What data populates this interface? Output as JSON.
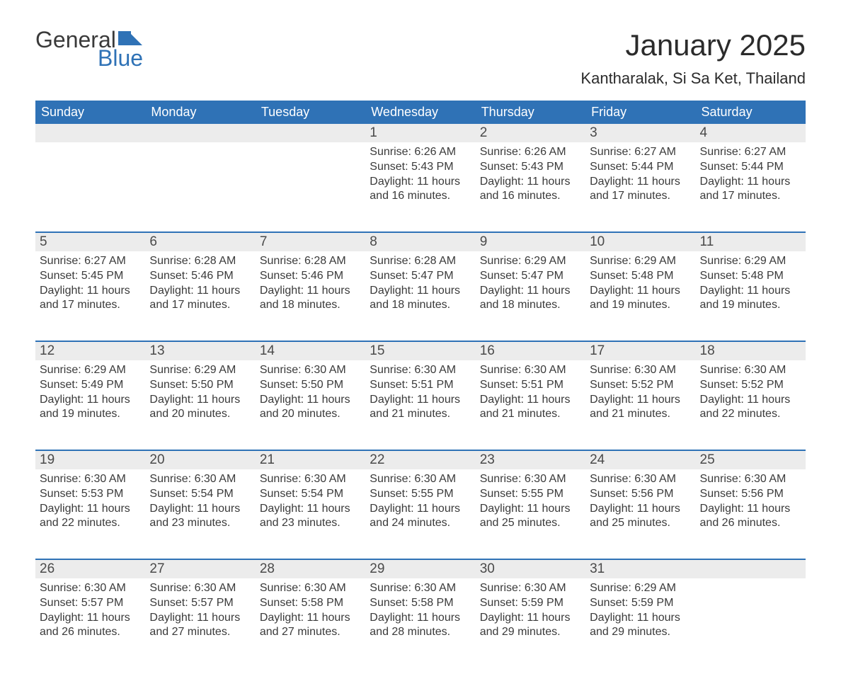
{
  "logo": {
    "text1": "General",
    "text2": "Blue",
    "flag_color": "#2f72b6"
  },
  "header": {
    "month_title": "January 2025",
    "location": "Kantharalak, Si Sa Ket, Thailand",
    "title_fontsize": 42,
    "location_fontsize": 22
  },
  "styling": {
    "header_bg": "#2f72b6",
    "header_fg": "#ffffff",
    "daynum_bg": "#ececec",
    "week_divider": "#2f72b6",
    "body_text": "#3a3a3a",
    "weekday_fontsize": 18,
    "daynum_fontsize": 19,
    "body_fontsize": 16
  },
  "weekdays": [
    "Sunday",
    "Monday",
    "Tuesday",
    "Wednesday",
    "Thursday",
    "Friday",
    "Saturday"
  ],
  "weeks": [
    [
      {
        "day": "",
        "sunrise": "",
        "sunset": "",
        "daylight": ""
      },
      {
        "day": "",
        "sunrise": "",
        "sunset": "",
        "daylight": ""
      },
      {
        "day": "",
        "sunrise": "",
        "sunset": "",
        "daylight": ""
      },
      {
        "day": "1",
        "sunrise": "Sunrise: 6:26 AM",
        "sunset": "Sunset: 5:43 PM",
        "daylight": "Daylight: 11 hours and 16 minutes."
      },
      {
        "day": "2",
        "sunrise": "Sunrise: 6:26 AM",
        "sunset": "Sunset: 5:43 PM",
        "daylight": "Daylight: 11 hours and 16 minutes."
      },
      {
        "day": "3",
        "sunrise": "Sunrise: 6:27 AM",
        "sunset": "Sunset: 5:44 PM",
        "daylight": "Daylight: 11 hours and 17 minutes."
      },
      {
        "day": "4",
        "sunrise": "Sunrise: 6:27 AM",
        "sunset": "Sunset: 5:44 PM",
        "daylight": "Daylight: 11 hours and 17 minutes."
      }
    ],
    [
      {
        "day": "5",
        "sunrise": "Sunrise: 6:27 AM",
        "sunset": "Sunset: 5:45 PM",
        "daylight": "Daylight: 11 hours and 17 minutes."
      },
      {
        "day": "6",
        "sunrise": "Sunrise: 6:28 AM",
        "sunset": "Sunset: 5:46 PM",
        "daylight": "Daylight: 11 hours and 17 minutes."
      },
      {
        "day": "7",
        "sunrise": "Sunrise: 6:28 AM",
        "sunset": "Sunset: 5:46 PM",
        "daylight": "Daylight: 11 hours and 18 minutes."
      },
      {
        "day": "8",
        "sunrise": "Sunrise: 6:28 AM",
        "sunset": "Sunset: 5:47 PM",
        "daylight": "Daylight: 11 hours and 18 minutes."
      },
      {
        "day": "9",
        "sunrise": "Sunrise: 6:29 AM",
        "sunset": "Sunset: 5:47 PM",
        "daylight": "Daylight: 11 hours and 18 minutes."
      },
      {
        "day": "10",
        "sunrise": "Sunrise: 6:29 AM",
        "sunset": "Sunset: 5:48 PM",
        "daylight": "Daylight: 11 hours and 19 minutes."
      },
      {
        "day": "11",
        "sunrise": "Sunrise: 6:29 AM",
        "sunset": "Sunset: 5:48 PM",
        "daylight": "Daylight: 11 hours and 19 minutes."
      }
    ],
    [
      {
        "day": "12",
        "sunrise": "Sunrise: 6:29 AM",
        "sunset": "Sunset: 5:49 PM",
        "daylight": "Daylight: 11 hours and 19 minutes."
      },
      {
        "day": "13",
        "sunrise": "Sunrise: 6:29 AM",
        "sunset": "Sunset: 5:50 PM",
        "daylight": "Daylight: 11 hours and 20 minutes."
      },
      {
        "day": "14",
        "sunrise": "Sunrise: 6:30 AM",
        "sunset": "Sunset: 5:50 PM",
        "daylight": "Daylight: 11 hours and 20 minutes."
      },
      {
        "day": "15",
        "sunrise": "Sunrise: 6:30 AM",
        "sunset": "Sunset: 5:51 PM",
        "daylight": "Daylight: 11 hours and 21 minutes."
      },
      {
        "day": "16",
        "sunrise": "Sunrise: 6:30 AM",
        "sunset": "Sunset: 5:51 PM",
        "daylight": "Daylight: 11 hours and 21 minutes."
      },
      {
        "day": "17",
        "sunrise": "Sunrise: 6:30 AM",
        "sunset": "Sunset: 5:52 PM",
        "daylight": "Daylight: 11 hours and 21 minutes."
      },
      {
        "day": "18",
        "sunrise": "Sunrise: 6:30 AM",
        "sunset": "Sunset: 5:52 PM",
        "daylight": "Daylight: 11 hours and 22 minutes."
      }
    ],
    [
      {
        "day": "19",
        "sunrise": "Sunrise: 6:30 AM",
        "sunset": "Sunset: 5:53 PM",
        "daylight": "Daylight: 11 hours and 22 minutes."
      },
      {
        "day": "20",
        "sunrise": "Sunrise: 6:30 AM",
        "sunset": "Sunset: 5:54 PM",
        "daylight": "Daylight: 11 hours and 23 minutes."
      },
      {
        "day": "21",
        "sunrise": "Sunrise: 6:30 AM",
        "sunset": "Sunset: 5:54 PM",
        "daylight": "Daylight: 11 hours and 23 minutes."
      },
      {
        "day": "22",
        "sunrise": "Sunrise: 6:30 AM",
        "sunset": "Sunset: 5:55 PM",
        "daylight": "Daylight: 11 hours and 24 minutes."
      },
      {
        "day": "23",
        "sunrise": "Sunrise: 6:30 AM",
        "sunset": "Sunset: 5:55 PM",
        "daylight": "Daylight: 11 hours and 25 minutes."
      },
      {
        "day": "24",
        "sunrise": "Sunrise: 6:30 AM",
        "sunset": "Sunset: 5:56 PM",
        "daylight": "Daylight: 11 hours and 25 minutes."
      },
      {
        "day": "25",
        "sunrise": "Sunrise: 6:30 AM",
        "sunset": "Sunset: 5:56 PM",
        "daylight": "Daylight: 11 hours and 26 minutes."
      }
    ],
    [
      {
        "day": "26",
        "sunrise": "Sunrise: 6:30 AM",
        "sunset": "Sunset: 5:57 PM",
        "daylight": "Daylight: 11 hours and 26 minutes."
      },
      {
        "day": "27",
        "sunrise": "Sunrise: 6:30 AM",
        "sunset": "Sunset: 5:57 PM",
        "daylight": "Daylight: 11 hours and 27 minutes."
      },
      {
        "day": "28",
        "sunrise": "Sunrise: 6:30 AM",
        "sunset": "Sunset: 5:58 PM",
        "daylight": "Daylight: 11 hours and 27 minutes."
      },
      {
        "day": "29",
        "sunrise": "Sunrise: 6:30 AM",
        "sunset": "Sunset: 5:58 PM",
        "daylight": "Daylight: 11 hours and 28 minutes."
      },
      {
        "day": "30",
        "sunrise": "Sunrise: 6:30 AM",
        "sunset": "Sunset: 5:59 PM",
        "daylight": "Daylight: 11 hours and 29 minutes."
      },
      {
        "day": "31",
        "sunrise": "Sunrise: 6:29 AM",
        "sunset": "Sunset: 5:59 PM",
        "daylight": "Daylight: 11 hours and 29 minutes."
      },
      {
        "day": "",
        "sunrise": "",
        "sunset": "",
        "daylight": ""
      }
    ]
  ]
}
